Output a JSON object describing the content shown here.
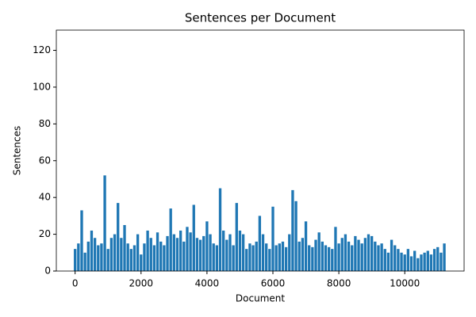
{
  "chart_data": {
    "type": "bar",
    "title": "Sentences per Document",
    "x_label": "Document",
    "y_label": "Sentences",
    "x": [
      0,
      100,
      200,
      300,
      400,
      500,
      600,
      700,
      800,
      900,
      1000,
      1100,
      1200,
      1300,
      1400,
      1500,
      1600,
      1700,
      1800,
      1900,
      2000,
      2100,
      2200,
      2300,
      2400,
      2500,
      2600,
      2700,
      2800,
      2900,
      3000,
      3100,
      3200,
      3300,
      3400,
      3500,
      3600,
      3700,
      3800,
      3900,
      4000,
      4100,
      4200,
      4300,
      4400,
      4500,
      4600,
      4700,
      4800,
      4900,
      5000,
      5100,
      5200,
      5300,
      5400,
      5500,
      5600,
      5700,
      5800,
      5900,
      6000,
      6100,
      6200,
      6300,
      6400,
      6500,
      6600,
      6700,
      6800,
      6900,
      7000,
      7100,
      7200,
      7300,
      7400,
      7500,
      7600,
      7700,
      7800,
      7900,
      8000,
      8100,
      8200,
      8300,
      8400,
      8500,
      8600,
      8700,
      8800,
      8900,
      9000,
      9100,
      9200,
      9300,
      9400,
      9500,
      9600,
      9700,
      9800,
      9900,
      10000,
      10100,
      10200,
      10300,
      10400,
      10500,
      10600,
      10700,
      10800,
      10900,
      11000,
      11100,
      11200
    ],
    "values": [
      12,
      15,
      33,
      10,
      16,
      22,
      18,
      14,
      15,
      52,
      12,
      18,
      20,
      37,
      18,
      25,
      15,
      12,
      14,
      20,
      9,
      15,
      22,
      18,
      14,
      21,
      16,
      14,
      19,
      34,
      20,
      18,
      22,
      16,
      24,
      21,
      36,
      18,
      17,
      19,
      27,
      20,
      15,
      14,
      45,
      22,
      17,
      20,
      14,
      37,
      22,
      20,
      12,
      15,
      14,
      16,
      30,
      20,
      15,
      12,
      35,
      14,
      15,
      16,
      13,
      20,
      44,
      38,
      16,
      18,
      27,
      14,
      13,
      17,
      21,
      16,
      14,
      13,
      12,
      24,
      15,
      18,
      20,
      16,
      14,
      19,
      17,
      15,
      18,
      20,
      19,
      16,
      14,
      15,
      12,
      10,
      17,
      14,
      12,
      10,
      9,
      12,
      8,
      11,
      7,
      9,
      10,
      11,
      9,
      12,
      13,
      10,
      15
    ],
    "color": "#1f77b4",
    "xlim": [
      -570,
      11800
    ],
    "ylim": [
      0,
      131
    ],
    "xticks": [
      0,
      2000,
      4000,
      6000,
      8000,
      10000
    ],
    "yticks": [
      0,
      20,
      40,
      60,
      80,
      100,
      120
    ]
  }
}
